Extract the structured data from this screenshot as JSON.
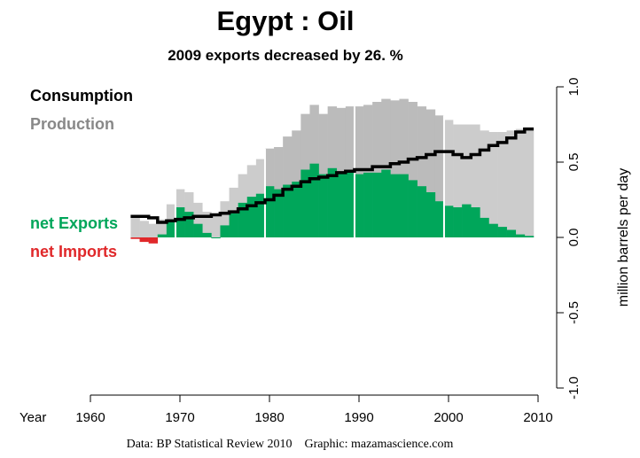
{
  "chart_data": {
    "type": "bar",
    "title": "Egypt :  Oil",
    "subtitle": "2009 exports decreased by 26. %",
    "ylabel": "million barrels per day",
    "xlabel": "Year",
    "xlim": [
      1960,
      2010
    ],
    "ylim": [
      -1.0,
      1.0
    ],
    "x_ticks": [
      "1960",
      "1970",
      "1980",
      "1990",
      "2000",
      "2010"
    ],
    "y_ticks": [
      "1.0",
      "0.5",
      "0.0",
      "-0.5",
      "-1.0"
    ],
    "legend": [
      "Consumption",
      "Production",
      "net Exports",
      "net Imports"
    ],
    "source": "Data: BP Statistical Review 2010    Graphic: mazamascience.com",
    "colors": {
      "production": "#cccccc",
      "production_dark": "#bbbbbb",
      "exports": "#00a65a",
      "imports": "#e0282a",
      "consumption": "#000000",
      "decade_lines": "#ffffff"
    },
    "years": [
      1965,
      1966,
      1967,
      1968,
      1969,
      1970,
      1971,
      1972,
      1973,
      1974,
      1975,
      1976,
      1977,
      1978,
      1979,
      1980,
      1981,
      1982,
      1983,
      1984,
      1985,
      1986,
      1987,
      1988,
      1989,
      1990,
      1991,
      1992,
      1993,
      1994,
      1995,
      1996,
      1997,
      1998,
      1999,
      2000,
      2001,
      2002,
      2003,
      2004,
      2005,
      2006,
      2007,
      2008,
      2009
    ],
    "series": [
      {
        "name": "Production",
        "values": [
          0.13,
          0.11,
          0.09,
          0.12,
          0.22,
          0.32,
          0.3,
          0.23,
          0.17,
          0.15,
          0.24,
          0.33,
          0.42,
          0.48,
          0.52,
          0.59,
          0.6,
          0.67,
          0.71,
          0.82,
          0.88,
          0.82,
          0.87,
          0.86,
          0.87,
          0.87,
          0.88,
          0.9,
          0.92,
          0.91,
          0.92,
          0.9,
          0.87,
          0.85,
          0.81,
          0.78,
          0.75,
          0.75,
          0.75,
          0.71,
          0.7,
          0.7,
          0.71,
          0.72,
          0.73
        ]
      },
      {
        "name": "Consumption",
        "values": [
          0.14,
          0.14,
          0.13,
          0.1,
          0.11,
          0.12,
          0.13,
          0.14,
          0.14,
          0.15,
          0.16,
          0.17,
          0.19,
          0.21,
          0.23,
          0.25,
          0.28,
          0.32,
          0.34,
          0.37,
          0.39,
          0.4,
          0.41,
          0.43,
          0.44,
          0.45,
          0.45,
          0.47,
          0.47,
          0.49,
          0.5,
          0.52,
          0.53,
          0.55,
          0.57,
          0.57,
          0.55,
          0.53,
          0.55,
          0.58,
          0.61,
          0.63,
          0.66,
          0.7,
          0.72
        ]
      },
      {
        "name": "net Exports",
        "values": [
          -0.01,
          -0.03,
          -0.04,
          0.02,
          0.11,
          0.2,
          0.17,
          0.09,
          0.03,
          0.0,
          0.08,
          0.16,
          0.23,
          0.27,
          0.29,
          0.34,
          0.32,
          0.35,
          0.37,
          0.45,
          0.49,
          0.42,
          0.46,
          0.43,
          0.43,
          0.42,
          0.43,
          0.43,
          0.45,
          0.42,
          0.42,
          0.38,
          0.34,
          0.3,
          0.24,
          0.21,
          0.2,
          0.22,
          0.2,
          0.13,
          0.09,
          0.07,
          0.05,
          0.02,
          0.01
        ]
      }
    ]
  }
}
